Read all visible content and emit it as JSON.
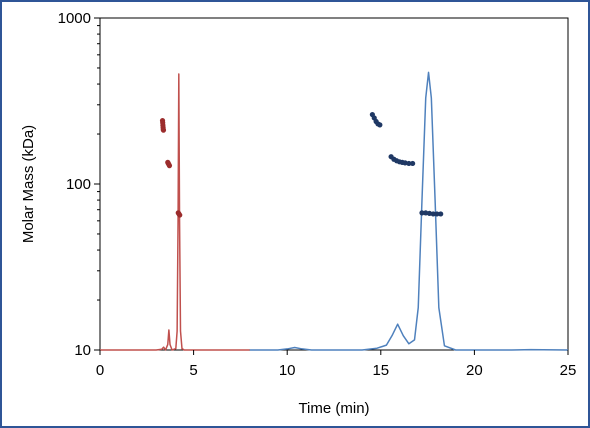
{
  "chart_data": {
    "type": "line",
    "title": "",
    "xlabel": "Time (min)",
    "ylabel": "Molar Mass (kDa)",
    "xlim": [
      0,
      25
    ],
    "ylim": [
      10,
      1000
    ],
    "yscale": "log",
    "grid": false,
    "legend": "none",
    "x_ticks": [
      0,
      5,
      10,
      15,
      20,
      25
    ],
    "x_tick_labels": [
      "0",
      "5",
      "10",
      "15",
      "20",
      "25"
    ],
    "y_ticks": [
      10,
      100,
      1000
    ],
    "y_tick_labels": [
      "10",
      "100",
      "1000"
    ],
    "colors": {
      "frame": "#2f5597",
      "red_trace": "#c0504d",
      "red_points": "#9b2c2c",
      "blue_trace": "#4f81bd",
      "blue_points": "#1f3864"
    },
    "series": [
      {
        "kind": "trace",
        "color_key": "red_trace",
        "points": [
          [
            0.0,
            10
          ],
          [
            3.0,
            10
          ],
          [
            3.3,
            10.1
          ],
          [
            3.4,
            10.4
          ],
          [
            3.5,
            10
          ],
          [
            3.62,
            10.8
          ],
          [
            3.68,
            13.2
          ],
          [
            3.74,
            10.8
          ],
          [
            3.85,
            10
          ],
          [
            4.05,
            10.2
          ],
          [
            4.12,
            13
          ],
          [
            4.17,
            60
          ],
          [
            4.21,
            460
          ],
          [
            4.25,
            60
          ],
          [
            4.3,
            13
          ],
          [
            4.38,
            10.2
          ],
          [
            4.5,
            10
          ],
          [
            8.0,
            10
          ]
        ]
      },
      {
        "kind": "trace",
        "color_key": "blue_trace",
        "points": [
          [
            8.0,
            10
          ],
          [
            9.5,
            10
          ],
          [
            10.0,
            10.15
          ],
          [
            10.4,
            10.35
          ],
          [
            10.8,
            10.15
          ],
          [
            11.3,
            10
          ],
          [
            14.0,
            10
          ],
          [
            14.8,
            10.25
          ],
          [
            15.3,
            10.7
          ],
          [
            15.6,
            12.2
          ],
          [
            15.9,
            14.3
          ],
          [
            16.2,
            12.2
          ],
          [
            16.5,
            10.9
          ],
          [
            16.8,
            11.5
          ],
          [
            17.0,
            18
          ],
          [
            17.2,
            80
          ],
          [
            17.4,
            330
          ],
          [
            17.55,
            470
          ],
          [
            17.7,
            330
          ],
          [
            17.9,
            80
          ],
          [
            18.1,
            18
          ],
          [
            18.4,
            10.6
          ],
          [
            19.0,
            10
          ],
          [
            22.0,
            10
          ],
          [
            23.0,
            10.05
          ],
          [
            25.0,
            10
          ]
        ]
      },
      {
        "kind": "markers",
        "color_key": "red_points",
        "points": [
          [
            3.34,
            241
          ],
          [
            3.35,
            234
          ],
          [
            3.36,
            226
          ],
          [
            3.37,
            219
          ],
          [
            3.38,
            213
          ],
          [
            3.39,
            211
          ],
          [
            3.62,
            135
          ],
          [
            3.65,
            133
          ],
          [
            3.68,
            131
          ],
          [
            3.71,
            129
          ],
          [
            4.18,
            67
          ],
          [
            4.22,
            66
          ],
          [
            4.26,
            65
          ]
        ]
      },
      {
        "kind": "markers",
        "color_key": "blue_points",
        "points": [
          [
            14.55,
            262
          ],
          [
            14.65,
            250
          ],
          [
            14.75,
            238
          ],
          [
            14.85,
            230
          ],
          [
            14.95,
            227
          ],
          [
            15.55,
            146
          ],
          [
            15.7,
            141
          ],
          [
            15.85,
            138
          ],
          [
            16.0,
            136
          ],
          [
            16.15,
            135
          ],
          [
            16.3,
            134
          ],
          [
            16.5,
            133
          ],
          [
            16.7,
            133
          ],
          [
            17.2,
            67
          ],
          [
            17.4,
            67
          ],
          [
            17.6,
            66.5
          ],
          [
            17.8,
            66
          ],
          [
            18.0,
            66
          ],
          [
            18.2,
            66
          ]
        ]
      }
    ]
  }
}
